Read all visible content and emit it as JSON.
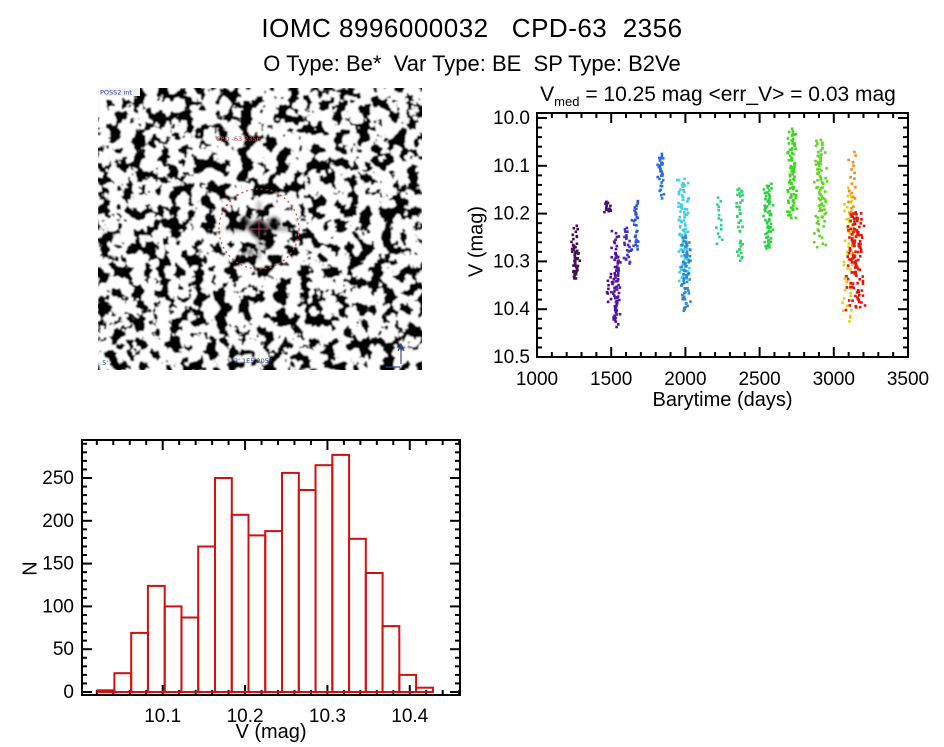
{
  "header": {
    "title": "IOMC 8996000032   CPD-63  2356",
    "subtitle": "O Type: Be*  Var Type: BE  SP Type: B2Ve"
  },
  "finding_chart": {
    "survey_label": "POSS2 int",
    "target_label": "CPD -63 2356",
    "bottom_label": "2' 1E5 205F",
    "corner_label": ".5'",
    "circle_color": "#cf4343",
    "crosshair_color": "#bb3366",
    "annotation_color": "#223a8f"
  },
  "chart_data": [
    {
      "type": "scatter",
      "title_v": "V",
      "title_sub": "med",
      "title_rest": " = 10.25 mag <err_V> = 0.03 mag",
      "xlabel": "Barytime (days)",
      "ylabel": "V (mag)",
      "xlim": [
        1000,
        3500
      ],
      "ylim": [
        10.0,
        10.5
      ],
      "y_axis_inverted_mag": true,
      "xticks": [
        1000,
        1500,
        2000,
        2500,
        3000,
        3500
      ],
      "yticks": [
        "10.0",
        "10.1",
        "10.2",
        "10.3",
        "10.4",
        "10.5"
      ],
      "x_minor_step": 100,
      "y_minor_step": 0.02,
      "point_color_map": "rainbow time-ordered",
      "clusters": [
        {
          "x": 1258,
          "xspread": 5,
          "color": "#45104e",
          "segments": [
            [
              10.225,
              10.265,
              10
            ],
            [
              10.265,
              10.335,
              42
            ]
          ]
        },
        {
          "x": 1478,
          "xspread": 4,
          "color": "#4c0b7e",
          "segments": [
            [
              10.177,
              10.197,
              14
            ]
          ]
        },
        {
          "x": 1482,
          "xspread": 3,
          "color": "#4c0b8e",
          "segments": [
            [
              10.325,
              10.385,
              9
            ]
          ]
        },
        {
          "x": 1532,
          "xspread": 5,
          "color": "#5013a8",
          "segments": [
            [
              10.238,
              10.285,
              12
            ],
            [
              10.285,
              10.425,
              68
            ],
            [
              10.43,
              10.44,
              2
            ]
          ]
        },
        {
          "x": 1606,
          "xspread": 5,
          "color": "#4531c8",
          "segments": [
            [
              10.23,
              10.305,
              24
            ]
          ]
        },
        {
          "x": 1665,
          "xspread": 4,
          "color": "#2d55dc",
          "segments": [
            [
              10.177,
              10.225,
              16
            ],
            [
              10.238,
              10.272,
              12
            ]
          ]
        },
        {
          "x": 1835,
          "xspread": 4,
          "color": "#2c6ee6",
          "segments": [
            [
              10.078,
              10.125,
              26
            ],
            [
              10.13,
              10.168,
              9
            ]
          ]
        },
        {
          "x": 1984,
          "xspread": 7,
          "color": "#3fd0e8",
          "segments": [
            [
              10.128,
              10.34,
              95
            ]
          ]
        },
        {
          "x": 2002,
          "xspread": 6,
          "color": "#2f86d2",
          "segments": [
            [
              10.248,
              10.405,
              62
            ]
          ]
        },
        {
          "x": 2225,
          "xspread": 4,
          "color": "#30caa2",
          "segments": [
            [
              10.168,
              10.262,
              15
            ]
          ]
        },
        {
          "x": 2370,
          "xspread": 4,
          "color": "#2fd06e",
          "segments": [
            [
              10.148,
              10.164,
              8
            ],
            [
              10.172,
              10.238,
              17
            ],
            [
              10.256,
              10.296,
              13
            ]
          ]
        },
        {
          "x": 2560,
          "xspread": 6,
          "color": "#2cce46",
          "segments": [
            [
              10.138,
              10.275,
              62
            ]
          ]
        },
        {
          "x": 2720,
          "xspread": 6,
          "color": "#3bd71c",
          "segments": [
            [
              10.025,
              10.21,
              82
            ]
          ]
        },
        {
          "x": 2910,
          "xspread": 7,
          "color": "#5fd622",
          "segments": [
            [
              10.048,
              10.215,
              72
            ],
            [
              10.22,
              10.272,
              12
            ]
          ]
        },
        {
          "x": 3096,
          "xspread": 7,
          "color": "#e3cf12",
          "segments": [
            [
              10.148,
              10.355,
              42
            ],
            [
              10.355,
              10.425,
              12
            ]
          ]
        },
        {
          "x": 3129,
          "xspread": 5,
          "color": "#ef8e1c",
          "segments": [
            [
              10.07,
              10.165,
              14
            ],
            [
              10.165,
              10.305,
              24
            ]
          ]
        },
        {
          "x": 3145,
          "xspread": 10,
          "color": "#e51408",
          "segments": [
            [
              10.198,
              10.31,
              75
            ],
            [
              10.31,
              10.4,
              45
            ]
          ]
        }
      ]
    },
    {
      "type": "histogram",
      "xlabel": "V (mag)",
      "ylabel": "N",
      "bar_color": "#cf1110",
      "xlim": [
        10.002,
        10.461
      ],
      "ylim": [
        0,
        290
      ],
      "xticks": [
        "10.1",
        "10.2",
        "10.3",
        "10.4"
      ],
      "yticks": [
        0,
        50,
        100,
        150,
        200,
        250
      ],
      "x_minor_step": 0.02,
      "y_minor_step": 10,
      "bin_start": 10.021,
      "bin_width": 0.02035,
      "counts": [
        2,
        22,
        69,
        124,
        100,
        87,
        170,
        250,
        207,
        183,
        188,
        256,
        236,
        265,
        277,
        179,
        139,
        77,
        20,
        5
      ]
    }
  ]
}
